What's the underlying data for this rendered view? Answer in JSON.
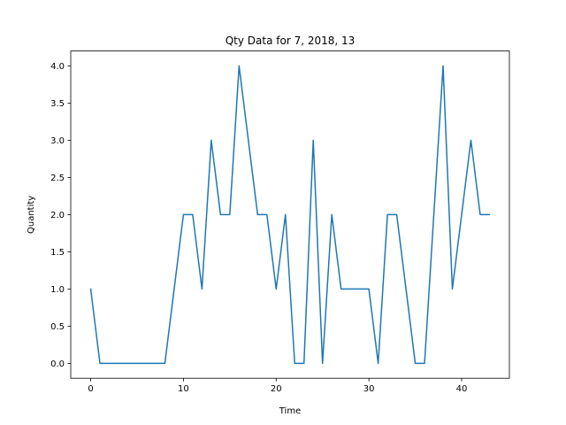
{
  "chart_data": {
    "type": "line",
    "title": "Qty Data for 7, 2018, 13",
    "xlabel": "Time",
    "ylabel": "Quantity",
    "xlim": [
      -2.15,
      45.15
    ],
    "ylim": [
      -0.2,
      4.2
    ],
    "xticks": [
      0,
      10,
      20,
      30,
      40
    ],
    "xtick_labels": [
      "0",
      "10",
      "20",
      "30",
      "40"
    ],
    "yticks": [
      0.0,
      0.5,
      1.0,
      1.5,
      2.0,
      2.5,
      3.0,
      3.5,
      4.0
    ],
    "ytick_labels": [
      "0.0",
      "0.5",
      "1.0",
      "1.5",
      "2.0",
      "2.5",
      "3.0",
      "3.5",
      "4.0"
    ],
    "grid": false,
    "series": [
      {
        "color": "#1f77b4",
        "x": [
          0,
          1,
          2,
          3,
          4,
          5,
          6,
          7,
          8,
          9,
          10,
          11,
          12,
          13,
          14,
          15,
          16,
          17,
          18,
          19,
          20,
          21,
          22,
          23,
          24,
          25,
          26,
          27,
          28,
          29,
          30,
          31,
          32,
          33,
          34,
          35,
          36,
          37,
          38,
          39,
          40,
          41,
          42,
          43
        ],
        "y": [
          1,
          0,
          0,
          0,
          0,
          0,
          0,
          0,
          0,
          1,
          2,
          2,
          1,
          3,
          2,
          2,
          4,
          3,
          2,
          2,
          1,
          2,
          0,
          0,
          3,
          0,
          2,
          1,
          1,
          1,
          1,
          0,
          2,
          2,
          1,
          0,
          0,
          2,
          4,
          1,
          2,
          3,
          2,
          2
        ]
      }
    ]
  }
}
